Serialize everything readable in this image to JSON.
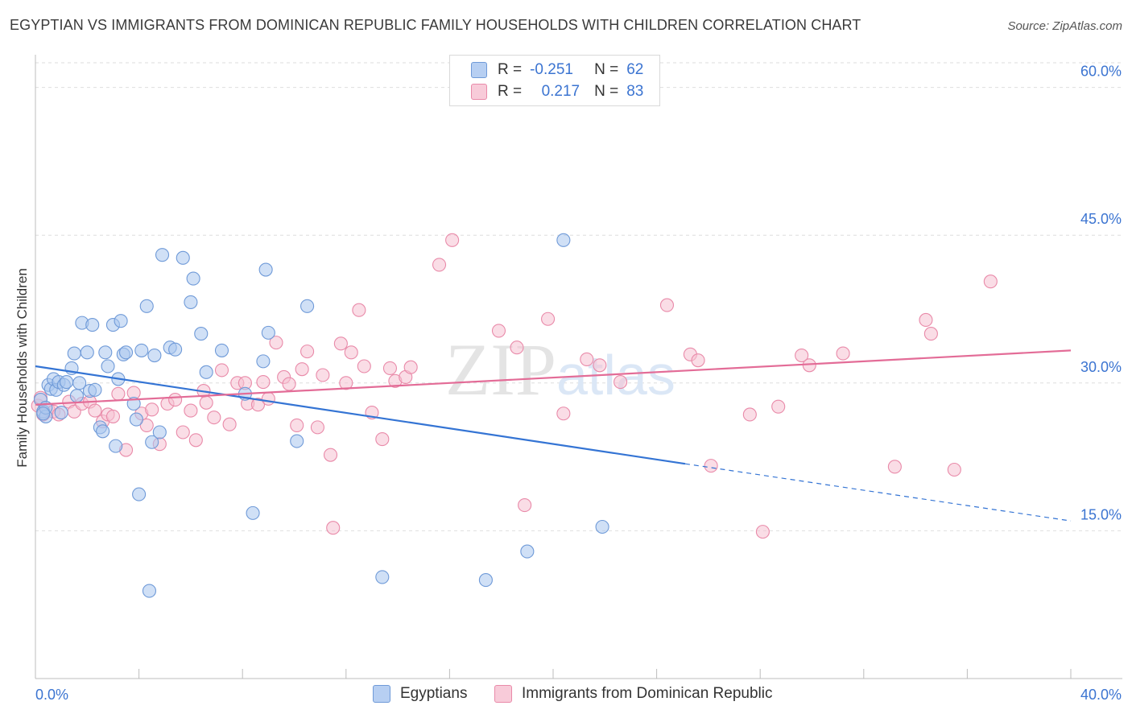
{
  "title": "EGYPTIAN VS IMMIGRANTS FROM DOMINICAN REPUBLIC FAMILY HOUSEHOLDS WITH CHILDREN CORRELATION CHART",
  "source": "Source: ZipAtlas.com",
  "watermark": "ZIPatlas",
  "legend": {
    "rows": [
      {
        "r_label": "R =",
        "r_value": "-0.251",
        "n_label": "N =",
        "n_value": "62"
      },
      {
        "r_label": "R =",
        "r_value": "0.217",
        "n_label": "N =",
        "n_value": "83"
      }
    ]
  },
  "colors": {
    "blue_fill": "#a9c6ef",
    "blue_stroke": "#6f9ad8",
    "blue_line": "#3474d4",
    "pink_fill": "#f6c1d2",
    "pink_stroke": "#e98aa9",
    "pink_line": "#e36c97",
    "axis_text": "#3b74d1"
  },
  "chart_data": {
    "type": "scatter",
    "title": "EGYPTIAN VS IMMIGRANTS FROM DOMINICAN REPUBLIC FAMILY HOUSEHOLDS WITH CHILDREN CORRELATION CHART",
    "xlabel": "",
    "ylabel": "Family Households with Children",
    "xlim": [
      0,
      40
    ],
    "ylim": [
      0,
      62.5
    ],
    "x_tick_labels": [
      "0.0%",
      "40.0%"
    ],
    "y_ticks": [
      15,
      30,
      45,
      60
    ],
    "y_tick_labels": [
      "15.0%",
      "30.0%",
      "45.0%",
      "60.0%"
    ],
    "grid": true,
    "legend_position": "top-center",
    "series": [
      {
        "name": "Egyptians",
        "r": -0.251,
        "n": 62,
        "trend": {
          "x0": 0,
          "y0": 31.7,
          "x1": 25.1,
          "y1": 21.8,
          "dash_to_x": 40,
          "dash_to_y": 16.0
        },
        "points": [
          [
            0.2,
            28.3
          ],
          [
            0.3,
            27.1
          ],
          [
            0.4,
            26.6
          ],
          [
            0.4,
            27.5
          ],
          [
            0.5,
            29.8
          ],
          [
            0.6,
            29.4
          ],
          [
            0.7,
            30.4
          ],
          [
            0.8,
            29.3
          ],
          [
            0.9,
            30.1
          ],
          [
            1.0,
            27.0
          ],
          [
            1.1,
            29.8
          ],
          [
            1.4,
            31.5
          ],
          [
            1.5,
            33.0
          ],
          [
            1.6,
            28.7
          ],
          [
            1.7,
            30.0
          ],
          [
            1.8,
            36.1
          ],
          [
            2.0,
            33.1
          ],
          [
            2.1,
            29.2
          ],
          [
            2.2,
            35.9
          ],
          [
            2.3,
            29.3
          ],
          [
            2.5,
            25.5
          ],
          [
            2.6,
            25.1
          ],
          [
            2.7,
            33.1
          ],
          [
            2.8,
            31.7
          ],
          [
            3.0,
            35.9
          ],
          [
            3.1,
            23.6
          ],
          [
            3.2,
            30.4
          ],
          [
            3.3,
            36.3
          ],
          [
            3.4,
            32.9
          ],
          [
            3.5,
            33.1
          ],
          [
            3.8,
            27.9
          ],
          [
            3.9,
            26.3
          ],
          [
            4.0,
            18.7
          ],
          [
            4.1,
            33.3
          ],
          [
            4.3,
            37.8
          ],
          [
            4.4,
            8.9
          ],
          [
            4.5,
            24.0
          ],
          [
            4.6,
            32.8
          ],
          [
            4.8,
            25.0
          ],
          [
            4.9,
            43.0
          ],
          [
            5.2,
            33.6
          ],
          [
            5.4,
            33.4
          ],
          [
            5.7,
            42.7
          ],
          [
            6.0,
            38.2
          ],
          [
            6.1,
            40.6
          ],
          [
            6.4,
            35.0
          ],
          [
            6.6,
            31.1
          ],
          [
            7.2,
            33.3
          ],
          [
            8.1,
            28.9
          ],
          [
            8.4,
            16.8
          ],
          [
            8.8,
            32.2
          ],
          [
            8.9,
            41.5
          ],
          [
            9.0,
            35.1
          ],
          [
            10.1,
            24.1
          ],
          [
            10.5,
            37.8
          ],
          [
            13.4,
            10.3
          ],
          [
            17.4,
            10.0
          ],
          [
            19.0,
            12.9
          ],
          [
            20.4,
            44.5
          ],
          [
            21.9,
            15.4
          ],
          [
            0.3,
            26.9
          ],
          [
            1.2,
            30.1
          ]
        ]
      },
      {
        "name": "Immigrants from Dominican Republic",
        "r": 0.217,
        "n": 83,
        "trend": {
          "x0": 0,
          "y0": 27.8,
          "x1": 40,
          "y1": 33.3
        },
        "points": [
          [
            0.1,
            27.7
          ],
          [
            0.2,
            28.5
          ],
          [
            0.3,
            26.8
          ],
          [
            0.5,
            27.3
          ],
          [
            0.7,
            27.1
          ],
          [
            0.9,
            26.8
          ],
          [
            1.3,
            28.1
          ],
          [
            1.5,
            27.1
          ],
          [
            1.8,
            27.9
          ],
          [
            2.1,
            28.1
          ],
          [
            2.3,
            27.2
          ],
          [
            2.6,
            26.1
          ],
          [
            2.8,
            26.8
          ],
          [
            3.0,
            26.6
          ],
          [
            3.2,
            28.9
          ],
          [
            3.5,
            23.2
          ],
          [
            3.8,
            29.0
          ],
          [
            4.1,
            26.9
          ],
          [
            4.3,
            25.7
          ],
          [
            4.5,
            27.3
          ],
          [
            4.8,
            23.8
          ],
          [
            5.1,
            27.9
          ],
          [
            5.4,
            28.3
          ],
          [
            5.7,
            25.0
          ],
          [
            6.0,
            27.2
          ],
          [
            6.2,
            24.2
          ],
          [
            6.5,
            29.2
          ],
          [
            6.6,
            28.0
          ],
          [
            6.9,
            26.5
          ],
          [
            7.2,
            31.3
          ],
          [
            7.5,
            25.8
          ],
          [
            7.8,
            30.0
          ],
          [
            8.1,
            30.0
          ],
          [
            8.2,
            27.9
          ],
          [
            8.6,
            27.8
          ],
          [
            8.8,
            30.1
          ],
          [
            9.0,
            28.4
          ],
          [
            9.3,
            34.1
          ],
          [
            9.6,
            30.6
          ],
          [
            9.8,
            29.9
          ],
          [
            10.1,
            25.7
          ],
          [
            10.3,
            31.4
          ],
          [
            10.5,
            33.2
          ],
          [
            10.9,
            25.5
          ],
          [
            11.1,
            30.8
          ],
          [
            11.4,
            22.7
          ],
          [
            11.5,
            15.3
          ],
          [
            11.8,
            34.0
          ],
          [
            12.0,
            30.0
          ],
          [
            12.2,
            33.1
          ],
          [
            12.5,
            37.4
          ],
          [
            12.7,
            31.7
          ],
          [
            13.0,
            27.0
          ],
          [
            13.4,
            24.3
          ],
          [
            13.7,
            31.5
          ],
          [
            13.9,
            30.2
          ],
          [
            14.3,
            30.6
          ],
          [
            14.5,
            31.6
          ],
          [
            15.6,
            42.0
          ],
          [
            16.1,
            44.5
          ],
          [
            17.9,
            35.3
          ],
          [
            18.6,
            33.6
          ],
          [
            18.9,
            17.6
          ],
          [
            19.8,
            36.5
          ],
          [
            20.4,
            26.9
          ],
          [
            21.3,
            32.4
          ],
          [
            21.8,
            31.8
          ],
          [
            22.6,
            30.1
          ],
          [
            24.4,
            37.9
          ],
          [
            25.3,
            32.9
          ],
          [
            25.6,
            32.3
          ],
          [
            26.1,
            21.6
          ],
          [
            27.6,
            26.8
          ],
          [
            28.1,
            14.9
          ],
          [
            28.7,
            27.6
          ],
          [
            29.6,
            32.8
          ],
          [
            29.9,
            31.8
          ],
          [
            31.2,
            33.0
          ],
          [
            33.2,
            21.5
          ],
          [
            34.4,
            36.4
          ],
          [
            34.6,
            35.0
          ],
          [
            35.5,
            21.2
          ],
          [
            36.9,
            40.3
          ]
        ]
      }
    ]
  }
}
